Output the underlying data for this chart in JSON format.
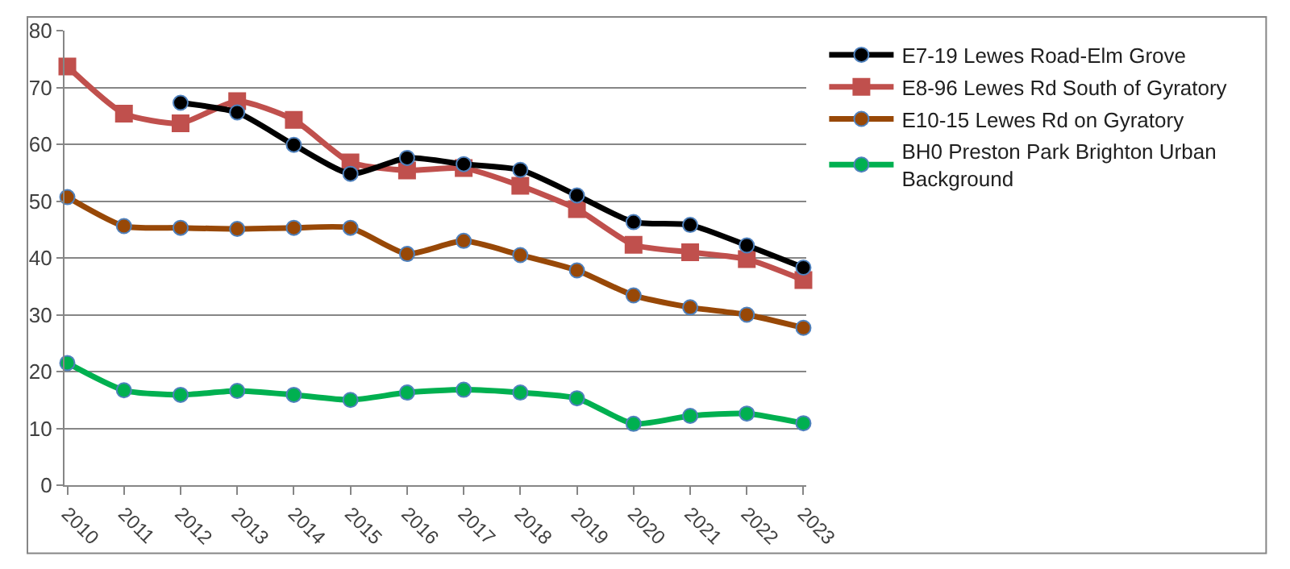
{
  "chart_data": {
    "type": "line",
    "categories": [
      "2010",
      "2011",
      "2012",
      "2013",
      "2014",
      "2015",
      "2016",
      "2017",
      "2018",
      "2019",
      "2020",
      "2021",
      "2022",
      "2023"
    ],
    "series": [
      {
        "name": "E7-19 Lewes Road-Elm Grove",
        "color": "#000000",
        "marker": "circle",
        "values": [
          null,
          null,
          67.3,
          65.6,
          59.9,
          54.8,
          57.6,
          56.5,
          55.5,
          51,
          46.3,
          45.8,
          42.2,
          38.3
        ]
      },
      {
        "name": "E8-96 Lewes Rd South of Gyratory",
        "color": "#c0504d",
        "marker": "square",
        "values": [
          73.7,
          65.4,
          63.7,
          67.6,
          64.3,
          56.8,
          55.4,
          55.8,
          52.7,
          48.6,
          42.3,
          41,
          39.8,
          36.1
        ]
      },
      {
        "name": "E10-15 Lewes Rd on Gyratory",
        "color": "#984807",
        "marker": "circle",
        "values": [
          50.7,
          45.6,
          45.3,
          45.1,
          45.3,
          45.3,
          40.7,
          43,
          40.5,
          37.8,
          33.4,
          31.3,
          30,
          27.7
        ]
      },
      {
        "name": "BH0 Preston Park Brighton Urban Background",
        "color": "#00b050",
        "marker": "circle",
        "values": [
          21.5,
          16.7,
          15.9,
          16.6,
          15.9,
          15,
          16.3,
          16.8,
          16.3,
          15.3,
          10.8,
          12.2,
          12.6,
          10.9
        ]
      }
    ],
    "ylim": [
      0,
      80
    ],
    "yticks": [
      0,
      10,
      20,
      30,
      40,
      50,
      60,
      70,
      80
    ],
    "grid": "y",
    "legend": "right",
    "line_style": "solid"
  }
}
